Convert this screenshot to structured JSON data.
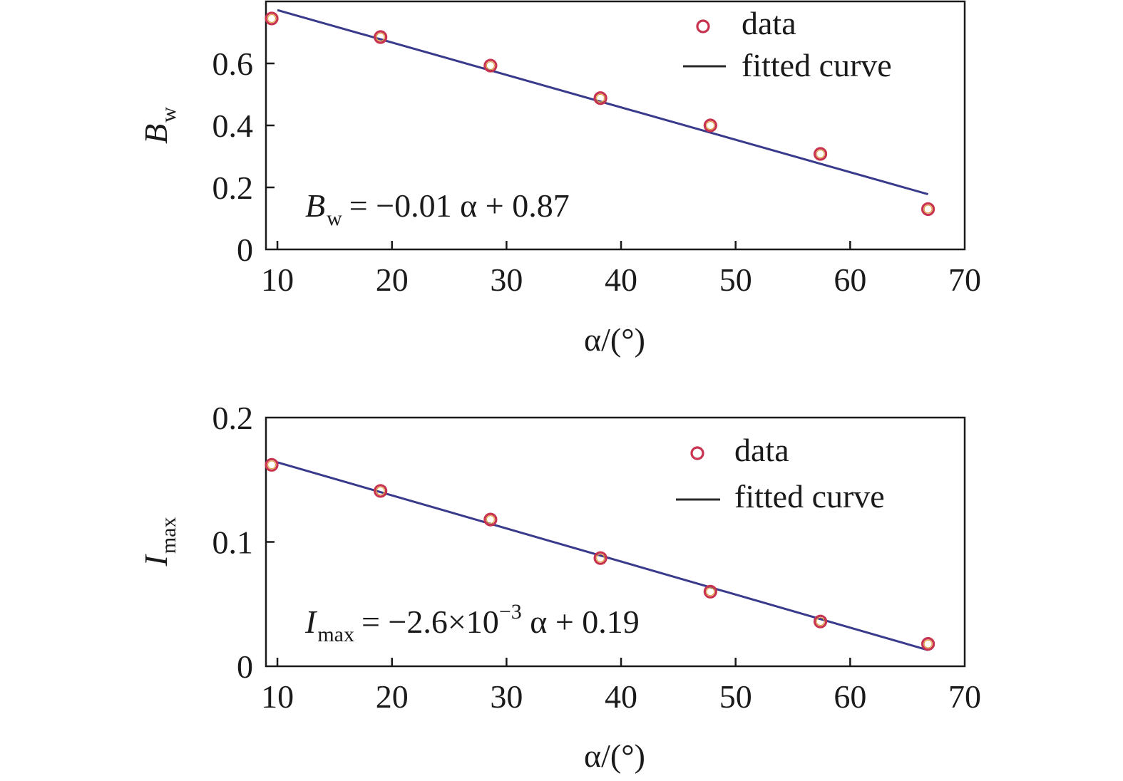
{
  "colors": {
    "marker": "#c8334f",
    "marker_inner": "#e0a040",
    "fit_line": "#3a3a8c",
    "axis": "#1a1a1a"
  },
  "chart_data": [
    {
      "type": "scatter",
      "id": "bw",
      "ylabel_main": "B",
      "ylabel_sub": "w",
      "xlabel": "α/(°)",
      "xlim": [
        9,
        70
      ],
      "ylim": [
        0,
        0.8
      ],
      "xticks": [
        10,
        20,
        30,
        40,
        50,
        60,
        70
      ],
      "xtick_labels": [
        "10",
        "20",
        "30",
        "40",
        "50",
        "60",
        "70"
      ],
      "yticks": [
        0,
        0.2,
        0.4,
        0.6
      ],
      "ytick_labels": [
        "0",
        "0.2",
        "0.4",
        "0.6"
      ],
      "series": [
        {
          "name": "data",
          "kind": "scatter",
          "x": [
            9.5,
            19.0,
            28.6,
            38.2,
            47.8,
            57.4,
            66.8
          ],
          "y": [
            0.745,
            0.685,
            0.593,
            0.488,
            0.4,
            0.308,
            0.13
          ]
        },
        {
          "name": "fitted curve",
          "kind": "line",
          "x": [
            10.0,
            66.8
          ],
          "y": [
            0.772,
            0.178
          ]
        }
      ],
      "legend": [
        "data",
        "fitted curve"
      ],
      "legend_position": "top-right",
      "equation": {
        "lhs_main": "B",
        "lhs_sub": "w",
        "rhs": "= −0.01 α  + 0.87"
      }
    },
    {
      "type": "scatter",
      "id": "imax",
      "ylabel_main": "I",
      "ylabel_sub": "max",
      "xlabel": "α/(°)",
      "xlim": [
        9,
        70
      ],
      "ylim": [
        0,
        0.2
      ],
      "xticks": [
        10,
        20,
        30,
        40,
        50,
        60,
        70
      ],
      "xtick_labels": [
        "10",
        "20",
        "30",
        "40",
        "50",
        "60",
        "70"
      ],
      "yticks": [
        0,
        0.1,
        0.2
      ],
      "ytick_labels": [
        "0",
        "0.1",
        "0.2"
      ],
      "series": [
        {
          "name": "data",
          "kind": "scatter",
          "x": [
            9.5,
            19.0,
            28.6,
            38.2,
            47.8,
            57.4,
            66.8
          ],
          "y": [
            0.162,
            0.141,
            0.118,
            0.087,
            0.06,
            0.036,
            0.018
          ]
        },
        {
          "name": "fitted curve",
          "kind": "line",
          "x": [
            10.0,
            66.8
          ],
          "y": [
            0.164,
            0.013
          ]
        }
      ],
      "legend": [
        "data",
        "fitted curve"
      ],
      "legend_position": "top-right",
      "equation": {
        "lhs_main": "I",
        "lhs_sub": "max",
        "mid": "= −2.6×10",
        "exp": "−3",
        "rhs": " α + 0.19"
      }
    }
  ]
}
